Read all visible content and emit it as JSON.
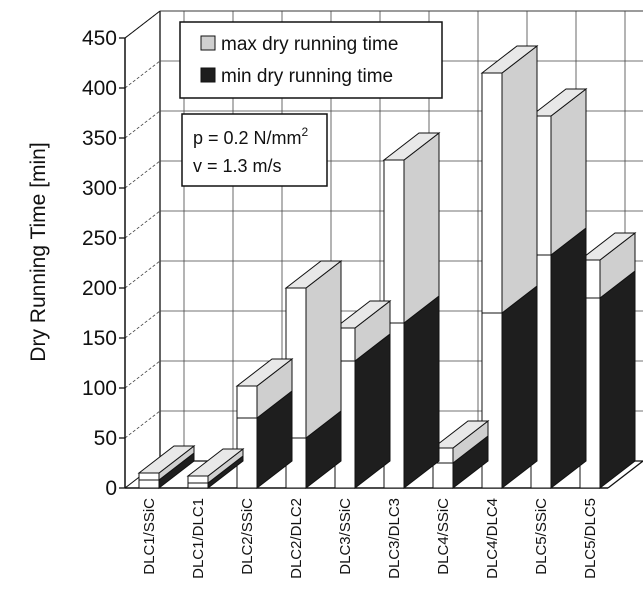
{
  "chart_data": {
    "type": "bar",
    "title": "",
    "xlabel": "",
    "ylabel": "Dry Running Time  [min]",
    "ylim": [
      0,
      450
    ],
    "yticks": [
      0,
      50,
      100,
      150,
      200,
      250,
      300,
      350,
      400,
      450
    ],
    "categories": [
      "DLC1/SSiC",
      "DLC1/DLC1",
      "DLC2/SSiC",
      "DLC2/DLC2",
      "DLC3/SSiC",
      "DLC3/DLC3",
      "DLC4/SSiC",
      "DLC4/DLC4",
      "DLC5/SSiC",
      "DLC5/DLC5"
    ],
    "series": [
      {
        "name": "max dry running time",
        "color": "#cfcfcf",
        "values": [
          15,
          12,
          102,
          200,
          160,
          328,
          40,
          415,
          372,
          228
        ]
      },
      {
        "name": "min dry running time",
        "color": "#1e1e1e",
        "values": [
          8,
          5,
          70,
          50,
          127,
          165,
          25,
          175,
          233,
          190
        ]
      }
    ],
    "legend_placement": "top-left",
    "grid": true,
    "three_d": true,
    "annotation": {
      "line1_prefix": "p = 0.2 N/mm",
      "line1_sup": "2",
      "line2": "v = 1.3 m/s"
    }
  }
}
